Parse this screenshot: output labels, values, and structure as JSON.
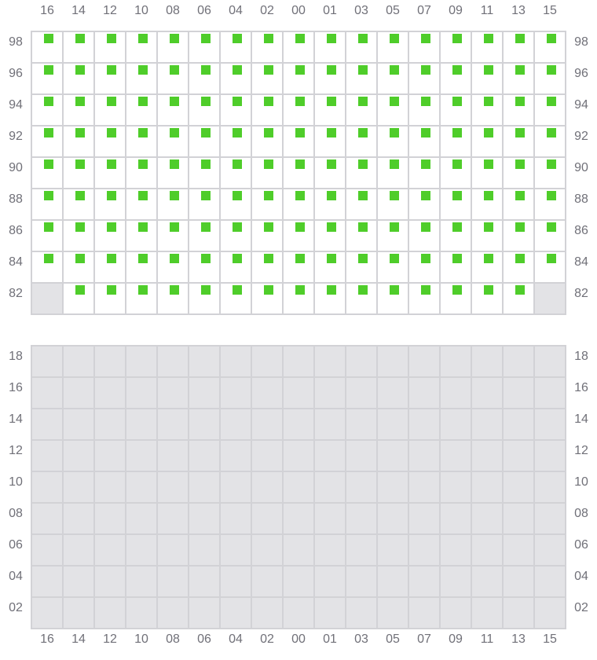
{
  "columns": [
    "16",
    "14",
    "12",
    "10",
    "08",
    "06",
    "04",
    "02",
    "00",
    "01",
    "03",
    "05",
    "07",
    "09",
    "11",
    "13",
    "15"
  ],
  "colors": {
    "active_marker": "#4fcd2a",
    "inactive_cell": "#e3e3e6",
    "grid_line": "#d2d2d6",
    "label": "#707078"
  },
  "top_grid": {
    "rows": [
      {
        "label": "98",
        "pattern": "MMMMMMMMMMMMMMMMM"
      },
      {
        "label": "96",
        "pattern": "MMMMMMMMMMMMMMMMM"
      },
      {
        "label": "94",
        "pattern": "MMMMMMMMMMMMMMMMM"
      },
      {
        "label": "92",
        "pattern": "MMMMMMMMMMMMMMMMM"
      },
      {
        "label": "90",
        "pattern": "MMMMMMMMMMMMMMMMM"
      },
      {
        "label": "88",
        "pattern": "MMMMMMMMMMMMMMMMM"
      },
      {
        "label": "86",
        "pattern": "MMMMMMMMMMMMMMMMM"
      },
      {
        "label": "84",
        "pattern": "MMMMMMMMMMMMMMMMM"
      },
      {
        "label": "82",
        "pattern": "XMMMMMMMMMMMMMMMX"
      }
    ]
  },
  "bottom_grid": {
    "rows": [
      {
        "label": "18",
        "pattern": "XXXXXXXXXXXXXXXXX"
      },
      {
        "label": "16",
        "pattern": "XXXXXXXXXXXXXXXXX"
      },
      {
        "label": "14",
        "pattern": "XXXXXXXXXXXXXXXXX"
      },
      {
        "label": "12",
        "pattern": "XXXXXXXXXXXXXXXXX"
      },
      {
        "label": "10",
        "pattern": "XXXXXXXXXXXXXXXXX"
      },
      {
        "label": "08",
        "pattern": "XXXXXXXXXXXXXXXXX"
      },
      {
        "label": "06",
        "pattern": "XXXXXXXXXXXXXXXXX"
      },
      {
        "label": "04",
        "pattern": "XXXXXXXXXXXXXXXXX"
      },
      {
        "label": "02",
        "pattern": "XXXXXXXXXXXXXXXXX"
      }
    ]
  },
  "legend_codes": {
    "M": "active with marker",
    "X": "inactive"
  }
}
